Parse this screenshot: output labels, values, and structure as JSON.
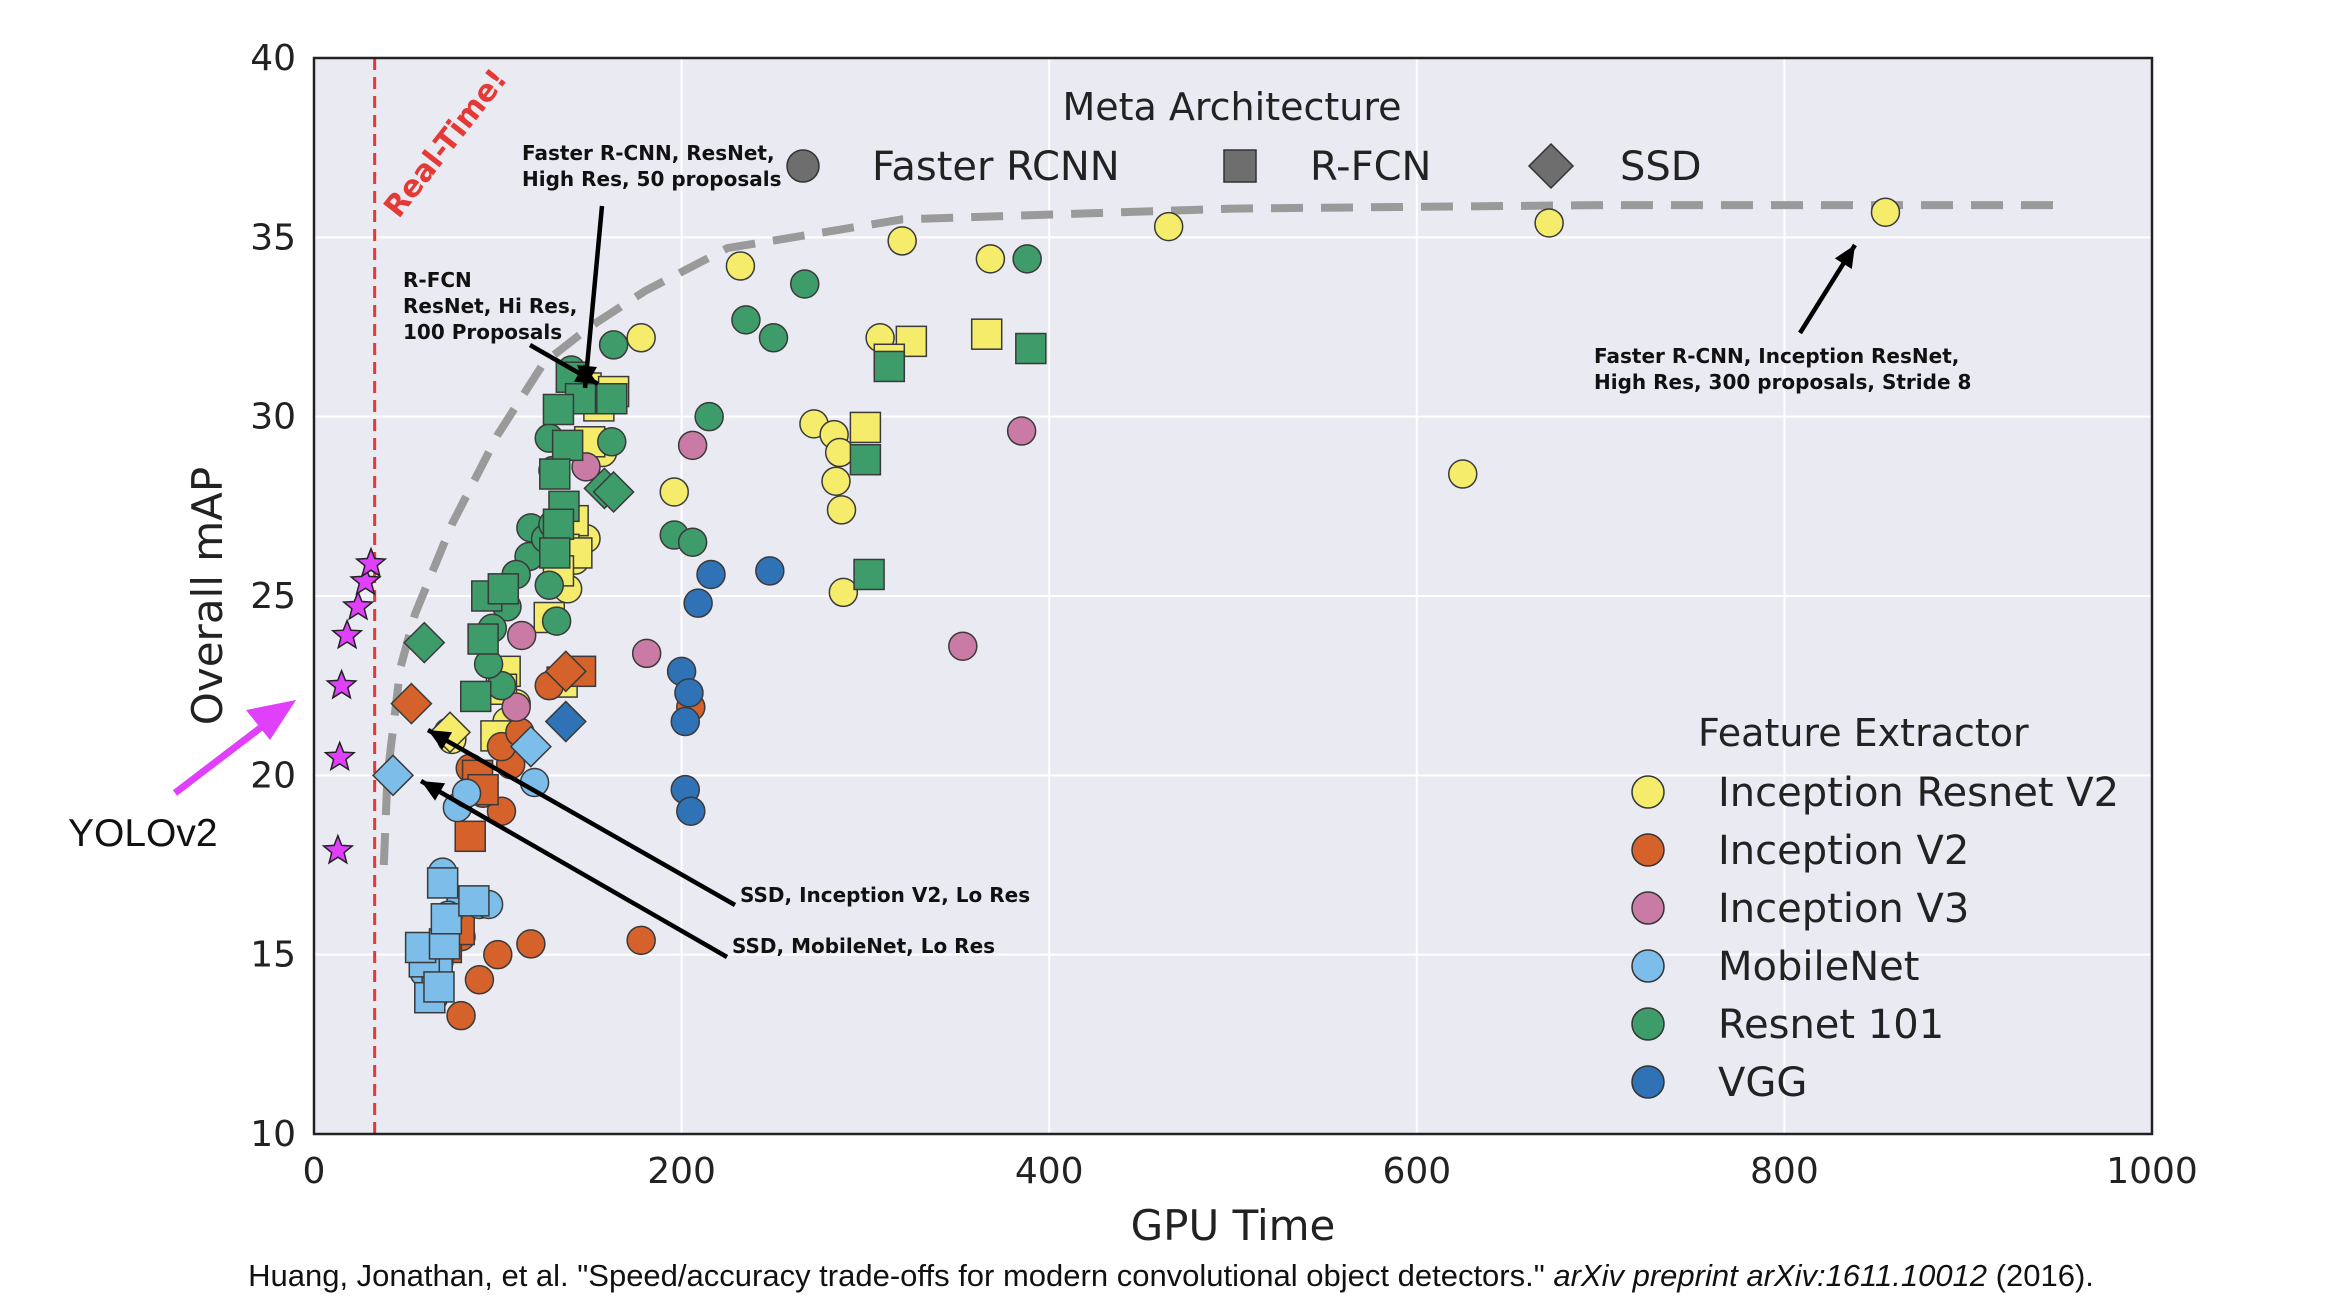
{
  "chart_data": {
    "type": "scatter",
    "xlabel": "GPU Time",
    "ylabel": "Overall mAP",
    "xlim": [
      0,
      1000
    ],
    "ylim": [
      10,
      40
    ],
    "x_ticks": [
      "0",
      "200",
      "400",
      "600",
      "800",
      "1000"
    ],
    "y_ticks": [
      "10",
      "15",
      "20",
      "25",
      "30",
      "35",
      "40"
    ],
    "grid": true,
    "meta_legend": {
      "title": "Meta Architecture",
      "placement": "top-center",
      "items": [
        {
          "label": "Faster RCNN",
          "shape": "circle"
        },
        {
          "label": "R-FCN",
          "shape": "square"
        },
        {
          "label": "SSD",
          "shape": "diamond"
        }
      ]
    },
    "feature_legend": {
      "title": "Feature Extractor",
      "placement": "bottom-right",
      "items": [
        {
          "label": "Inception Resnet V2",
          "color": "#f5ec6b"
        },
        {
          "label": "Inception V2",
          "color": "#d4622a"
        },
        {
          "label": "Inception V3",
          "color": "#c97aa5"
        },
        {
          "label": "MobileNet",
          "color": "#7cbde9"
        },
        {
          "label": "Resnet 101",
          "color": "#3e9b6a"
        },
        {
          "label": "VGG",
          "color": "#2f72b5"
        }
      ]
    },
    "realtime_label": "Real-Time!",
    "realtime_x": 33,
    "yolo_label": "YOLOv2",
    "annotations": [
      {
        "text": [
          "Faster R-CNN, ResNet,",
          "High Res, 50 proposals"
        ]
      },
      {
        "text": [
          "R-FCN",
          "ResNet, Hi Res,",
          "100 Proposals"
        ]
      },
      {
        "text": [
          "Faster R-CNN, Inception ResNet,",
          "High Res, 300 proposals, Stride 8"
        ]
      },
      {
        "text": [
          "SSD, Inception V2, Lo Res"
        ]
      },
      {
        "text": [
          "SSD, MobileNet, Lo Res"
        ]
      }
    ],
    "frontier": [
      [
        38,
        17.5
      ],
      [
        40,
        20
      ],
      [
        47,
        23
      ],
      [
        55,
        24.5
      ],
      [
        75,
        27
      ],
      [
        100,
        29.5
      ],
      [
        125,
        31.5
      ],
      [
        150,
        32.5
      ],
      [
        180,
        33.5
      ],
      [
        225,
        34.7
      ],
      [
        320,
        35.5
      ],
      [
        500,
        35.8
      ],
      [
        700,
        35.9
      ],
      [
        950,
        35.9
      ]
    ],
    "yolo_points": [
      [
        13,
        17.9
      ],
      [
        14,
        20.5
      ],
      [
        15,
        22.5
      ],
      [
        18,
        23.9
      ],
      [
        24,
        24.7
      ],
      [
        28,
        25.4
      ],
      [
        31,
        25.9
      ]
    ],
    "series": [
      {
        "name": "Inception Resnet V2",
        "points": [
          [
            855,
            35.7
          ],
          [
            672,
            35.4
          ],
          [
            465,
            35.3
          ],
          [
            320,
            34.9
          ],
          [
            368,
            34.4
          ],
          [
            232,
            34.2
          ],
          [
            178,
            32.2
          ],
          [
            308,
            32.2
          ],
          [
            272,
            29.8
          ],
          [
            283,
            29.5
          ],
          [
            286,
            29
          ],
          [
            284,
            28.2
          ],
          [
            287,
            27.4
          ],
          [
            288,
            25.1
          ],
          [
            625,
            28.4
          ],
          [
            196,
            27.9
          ],
          [
            157,
            29
          ],
          [
            148,
            26.6
          ],
          [
            142,
            26
          ],
          [
            138,
            25.2
          ],
          [
            75,
            21
          ],
          [
            73,
            21.2
          ],
          [
            105,
            21.5
          ],
          [
            110,
            22
          ]
        ],
        "squares": [
          [
            148,
            30.8
          ],
          [
            163,
            30.7
          ],
          [
            325,
            32.1
          ],
          [
            313,
            31.6
          ],
          [
            155,
            30.3
          ],
          [
            150,
            29.3
          ],
          [
            141,
            27.1
          ],
          [
            136,
            26.3
          ],
          [
            143,
            26.2
          ],
          [
            133,
            25.7
          ],
          [
            128,
            24.4
          ],
          [
            104,
            22.9
          ],
          [
            102,
            22.4
          ],
          [
            99,
            21.1
          ],
          [
            135,
            22.6
          ],
          [
            300,
            29.7
          ],
          [
            366,
            32.3
          ]
        ],
        "diamonds": [
          [
            74,
            21.2
          ]
        ]
      },
      {
        "name": "Inception V2",
        "points": [
          [
            80,
            13.3
          ],
          [
            90,
            14.3
          ],
          [
            100,
            15
          ],
          [
            118,
            15.3
          ],
          [
            178,
            15.4
          ],
          [
            102,
            19
          ],
          [
            92,
            19.5
          ],
          [
            85,
            20.2
          ],
          [
            107,
            20.3
          ],
          [
            102,
            20.8
          ],
          [
            112,
            21.2
          ],
          [
            128,
            22.5
          ],
          [
            205,
            21.9
          ],
          [
            80,
            15.5
          ]
        ],
        "squares": [
          [
            85,
            18.3
          ],
          [
            89,
            20
          ],
          [
            92,
            19.6
          ],
          [
            72,
            15.2
          ],
          [
            79,
            15.7
          ],
          [
            145,
            22.9
          ]
        ],
        "diamonds": [
          [
            53,
            22
          ],
          [
            137,
            22.9
          ]
        ]
      },
      {
        "name": "Inception V3",
        "points": [
          [
            385,
            29.6
          ],
          [
            206,
            29.2
          ],
          [
            148,
            28.6
          ],
          [
            181,
            23.4
          ],
          [
            353,
            23.6
          ],
          [
            113,
            23.9
          ],
          [
            110,
            21.9
          ]
        ],
        "squares": [],
        "diamonds": []
      },
      {
        "name": "MobileNet",
        "points": [
          [
            70,
            17.3
          ],
          [
            80,
            16.5
          ],
          [
            90,
            16.4
          ],
          [
            95,
            16.4
          ],
          [
            60,
            14.5
          ],
          [
            65,
            13.8
          ],
          [
            68,
            14.8
          ],
          [
            120,
            19.8
          ],
          [
            78,
            19.1
          ],
          [
            83,
            19.5
          ],
          [
            73,
            16.1
          ]
        ],
        "squares": [
          [
            67,
            14.6
          ],
          [
            60,
            14.8
          ],
          [
            58,
            15.2
          ],
          [
            71,
            15.3
          ],
          [
            63,
            13.8
          ],
          [
            68,
            14.1
          ],
          [
            72,
            16
          ],
          [
            70,
            17
          ],
          [
            87,
            16.5
          ]
        ],
        "diamonds": [
          [
            43,
            20
          ],
          [
            118,
            20.8
          ]
        ]
      },
      {
        "name": "Resnet 101",
        "points": [
          [
            388,
            34.4
          ],
          [
            267,
            33.7
          ],
          [
            235,
            32.7
          ],
          [
            250,
            32.2
          ],
          [
            163,
            32
          ],
          [
            140,
            31.3
          ],
          [
            215,
            30
          ],
          [
            162,
            29.3
          ],
          [
            128,
            29.4
          ],
          [
            130,
            28.5
          ],
          [
            196,
            26.7
          ],
          [
            206,
            26.5
          ],
          [
            118,
            26.9
          ],
          [
            117,
            26.1
          ],
          [
            126,
            26.6
          ],
          [
            130,
            27
          ],
          [
            110,
            25.6
          ],
          [
            105,
            24.7
          ],
          [
            97,
            24.1
          ],
          [
            102,
            22.5
          ],
          [
            95,
            23.1
          ],
          [
            128,
            25.3
          ],
          [
            132,
            24.3
          ]
        ],
        "squares": [
          [
            390,
            31.9
          ],
          [
            313,
            31.4
          ],
          [
            140,
            31.1
          ],
          [
            145,
            30.5
          ],
          [
            162,
            30.5
          ],
          [
            133,
            30.2
          ],
          [
            138,
            29.2
          ],
          [
            131,
            28.4
          ],
          [
            136,
            27.5
          ],
          [
            133,
            27
          ],
          [
            131,
            26.2
          ],
          [
            300,
            28.8
          ],
          [
            302,
            25.6
          ],
          [
            94,
            25
          ],
          [
            103,
            25.2
          ],
          [
            92,
            23.8
          ],
          [
            88,
            22.2
          ]
        ],
        "diamonds": [
          [
            60,
            23.7
          ],
          [
            158,
            28
          ],
          [
            163,
            27.9
          ]
        ]
      },
      {
        "name": "VGG",
        "points": [
          [
            200,
            22.9
          ],
          [
            204,
            22.3
          ],
          [
            202,
            21.5
          ],
          [
            202,
            19.6
          ],
          [
            205,
            19
          ],
          [
            216,
            25.6
          ],
          [
            209,
            24.8
          ],
          [
            248,
            25.7
          ]
        ],
        "squares": [],
        "diamonds": [
          [
            137,
            21.5
          ]
        ]
      }
    ]
  },
  "caption": {
    "main": "Huang, Jonathan, et al. \"Speed/accuracy trade-offs for modern convolutional object detectors.\" ",
    "italic": "arXiv preprint arXiv:1611.10012",
    "year": " (2016)."
  }
}
